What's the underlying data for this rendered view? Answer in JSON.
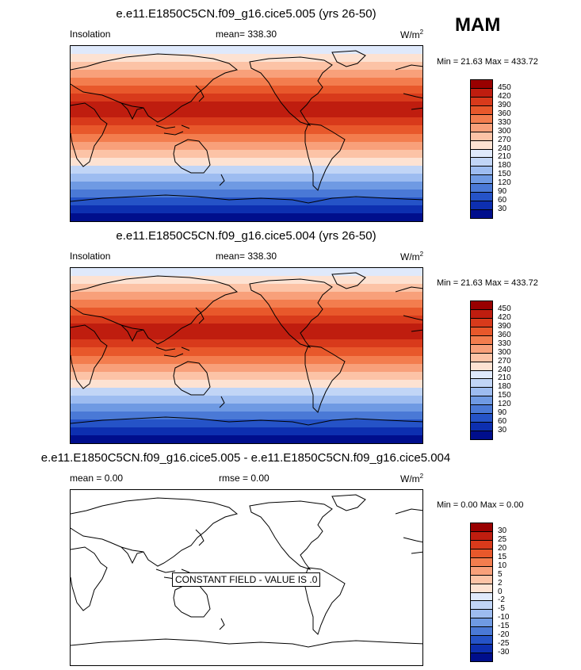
{
  "season": "MAM",
  "panels": [
    {
      "title": "e.e11.E1850C5CN.f09_g16.cice5.005 (yrs 26-50)",
      "left_label": "Insolation",
      "mean_label": "mean= 338.30",
      "units": "W/m",
      "units_sup": "2",
      "minmax": "Min =  21.63 Max = 433.72",
      "field": "Insolation"
    },
    {
      "title": "e.e11.E1850C5CN.f09_g16.cice5.004 (yrs 26-50)",
      "left_label": "Insolation",
      "mean_label": "mean= 338.30",
      "units": "W/m",
      "units_sup": "2",
      "minmax": "Min =  21.63 Max = 433.72",
      "field": "Insolation"
    },
    {
      "title": "e.e11.E1850C5CN.f09_g16.cice5.005 - e.e11.E1850C5CN.f09_g16.cice5.004",
      "mean_label": "mean =   0.00",
      "rmse_label": "rmse =   0.00",
      "units": "W/m",
      "units_sup": "2",
      "minmax": "Min =  0.00 Max =   0.00",
      "constant_label": "CONSTANT FIELD - VALUE IS .0",
      "field": "difference"
    }
  ],
  "colorbars": {
    "insolation": {
      "labels": [
        "450",
        "420",
        "390",
        "360",
        "330",
        "300",
        "270",
        "240",
        "210",
        "180",
        "150",
        "120",
        "90",
        "60",
        "30"
      ],
      "colors": [
        "#990000",
        "#bf1d0f",
        "#d83a1b",
        "#e8582b",
        "#f37d4e",
        "#f8a07a",
        "#fcc3a6",
        "#fde2d2",
        "#dfe9fb",
        "#c1d5f6",
        "#9dbcf0",
        "#6f9ae3",
        "#4a79d6",
        "#2553c7",
        "#0d2fb0",
        "#000e8c"
      ]
    },
    "difference": {
      "labels": [
        "30",
        "25",
        "20",
        "15",
        "10",
        "5",
        "2",
        "0",
        "-2",
        "-5",
        "-10",
        "-15",
        "-20",
        "-25",
        "-30"
      ],
      "colors": [
        "#990000",
        "#bf1d0f",
        "#d83a1b",
        "#e8582b",
        "#f37d4e",
        "#f8a07a",
        "#fcc3a6",
        "#fde2d2",
        "#dfe9fb",
        "#c1d5f6",
        "#9dbcf0",
        "#6f9ae3",
        "#4a79d6",
        "#2553c7",
        "#0d2fb0",
        "#000e8c"
      ]
    }
  },
  "map_bands_insolation": [
    "#dfe9fb",
    "#fde2d2",
    "#fcc3a6",
    "#f8a07a",
    "#f37d4e",
    "#e8582b",
    "#d83a1b",
    "#bf1d0f",
    "#bf1d0f",
    "#d83a1b",
    "#e8582b",
    "#f37d4e",
    "#f8a07a",
    "#fcc3a6",
    "#fde2d2",
    "#c1d5f6",
    "#9dbcf0",
    "#6f9ae3",
    "#4a79d6",
    "#2553c7",
    "#0d2fb0",
    "#000e8c"
  ]
}
